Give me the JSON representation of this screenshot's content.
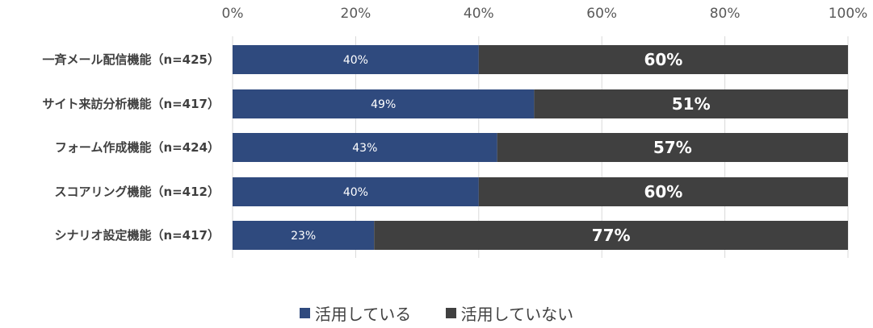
{
  "chart_data": {
    "type": "bar",
    "orientation": "horizontal",
    "stacked": true,
    "categories": [
      "一斉メール配信機能（n=425）",
      "サイト来訪分析機能（n=417）",
      "フォーム作成機能（n=424）",
      "スコアリング機能（n=412）",
      "シナリオ設定機能（n=417）"
    ],
    "series": [
      {
        "name": "活用している",
        "values": [
          40,
          49,
          43,
          40,
          23
        ],
        "color": "#2f4a7e"
      },
      {
        "name": "活用していない",
        "values": [
          60,
          51,
          57,
          60,
          77
        ],
        "color": "#404040"
      }
    ],
    "xlim": [
      0,
      100
    ],
    "xticks": [
      "0%",
      "20%",
      "40%",
      "60%",
      "80%",
      "100%"
    ],
    "value_suffix": "%",
    "grid": true,
    "legend_position": "bottom"
  }
}
